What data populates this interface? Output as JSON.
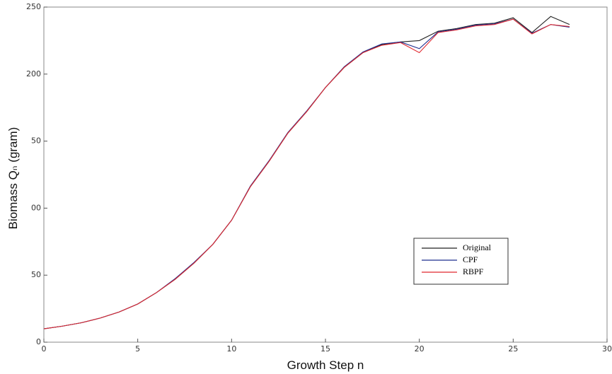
{
  "chart_data": {
    "type": "line",
    "xlabel": "Growth Step n",
    "ylabel": "Biomass Qₙ (gram)",
    "x": [
      0,
      1,
      2,
      3,
      4,
      5,
      6,
      7,
      8,
      9,
      10,
      11,
      12,
      13,
      14,
      15,
      16,
      17,
      18,
      19,
      20,
      21,
      22,
      23,
      24,
      25,
      26,
      27,
      28
    ],
    "series": [
      {
        "name": "Original",
        "color": "#222222",
        "values": [
          10,
          12,
          14.5,
          18,
          22.5,
          28.5,
          37,
          47,
          59,
          73,
          91,
          116,
          135,
          156,
          172,
          190,
          205,
          216,
          222,
          224,
          225,
          232,
          234,
          237,
          238,
          242,
          231,
          243,
          237
        ]
      },
      {
        "name": "CPF",
        "color": "#1f2f8f",
        "values": [
          10,
          12,
          14.5,
          18,
          22.5,
          28.5,
          37,
          47.5,
          59.5,
          73,
          91,
          116.5,
          135.5,
          156.5,
          172.5,
          190,
          205.5,
          216.5,
          222.5,
          224,
          219,
          231.5,
          233.5,
          236.5,
          237.5,
          241,
          230.5,
          237,
          235
        ]
      },
      {
        "name": "RBPF",
        "color": "#e0282f",
        "values": [
          10,
          12,
          14.5,
          18,
          22.5,
          28.5,
          37,
          47,
          59,
          73,
          91,
          116,
          135,
          156,
          172,
          190,
          205,
          216,
          221.5,
          223.5,
          216,
          231,
          233,
          236,
          237,
          241,
          230,
          237,
          235.5
        ]
      }
    ],
    "xlim": [
      0,
      30
    ],
    "xticks": [
      0,
      5,
      10,
      15,
      20,
      25,
      30
    ],
    "ylim": [
      0,
      250
    ],
    "yticks": [
      0,
      50,
      {
        "value": 100,
        "label": "00"
      },
      {
        "value": 150,
        "label": "50"
      },
      200,
      250
    ]
  }
}
